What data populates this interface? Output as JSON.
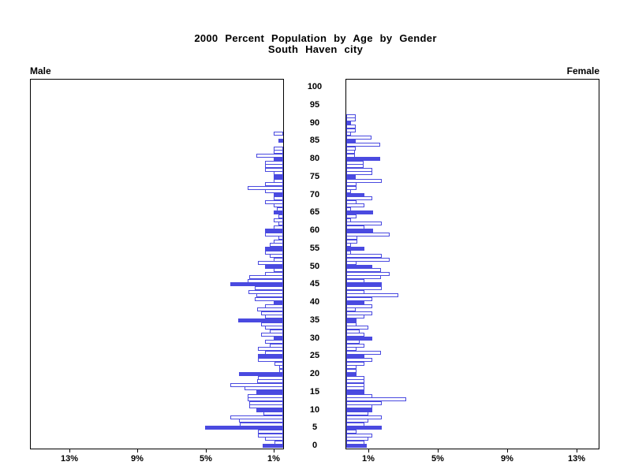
{
  "title": {
    "line1": "2000 Percent Population by Age by Gender",
    "line2": "South Haven city"
  },
  "panels": {
    "male_label": "Male",
    "female_label": "Female"
  },
  "axes": {
    "male_pct_ticks": [
      "13%",
      "9%",
      "5%",
      "1%"
    ],
    "female_pct_ticks": [
      "1%",
      "5%",
      "9%",
      "13%"
    ],
    "age_tick_start": 0,
    "age_tick_end": 100,
    "age_tick_step": 5
  },
  "colors": {
    "bar_blue": "#4a4ae0",
    "axis_black": "#000000",
    "background": "#ffffff"
  },
  "chart_data": {
    "type": "bar",
    "subtype": "population-pyramid",
    "title": "2000 Percent Population by Age by Gender",
    "subtitle": "South Haven city",
    "orientation": "horizontal",
    "x_unit": "percent of population",
    "x_ticks_pct": [
      1,
      5,
      9,
      13
    ],
    "x_max_pct": 15,
    "age_min": 0,
    "age_max": 100,
    "bar_fill_rule": "ages divisible by 5 are solid blue; other single-year ages are white with blue outline",
    "series": [
      {
        "name": "Male",
        "side": "left",
        "values_pct_by_age": [
          1.2,
          0.5,
          1.05,
          1.5,
          1.5,
          4.6,
          2.55,
          2.6,
          3.1,
          1.15,
          1.57,
          2.0,
          2.0,
          2.1,
          2.1,
          1.57,
          2.25,
          3.1,
          1.55,
          1.5,
          2.6,
          0.25,
          0.25,
          0.5,
          1.5,
          1.5,
          1.05,
          1.5,
          0.8,
          1.05,
          0.57,
          1.3,
          0.8,
          1.05,
          1.3,
          2.65,
          1.05,
          1.3,
          1.55,
          1.05,
          0.57,
          1.65,
          1.57,
          2.05,
          1.65,
          3.1,
          2.1,
          2.0,
          1.05,
          0.55,
          1.05,
          1.5,
          0.55,
          0.8,
          1.05,
          1.05,
          0.8,
          0.55,
          0.3,
          1.05,
          1.05,
          0.55,
          0.3,
          0.55,
          0.3,
          0.57,
          0.35,
          0.55,
          1.05,
          0.55,
          0.57,
          1.05,
          2.08,
          1.05,
          0.55,
          0.55,
          0.55,
          1.05,
          1.05,
          1.05,
          0.57,
          1.57,
          0.55,
          0.55,
          0,
          0.3,
          0,
          0.55,
          0,
          0,
          0,
          0,
          0,
          0,
          0,
          0,
          0,
          0,
          0,
          0,
          0
        ]
      },
      {
        "name": "Female",
        "side": "right",
        "values_pct_by_age": [
          1.2,
          1.05,
          1.3,
          1.52,
          0.6,
          2.07,
          1.05,
          1.3,
          2.07,
          1.3,
          1.52,
          1.52,
          2.07,
          3.5,
          1.52,
          1.05,
          1.05,
          1.05,
          1.05,
          1.05,
          0.6,
          0.6,
          0.6,
          1.05,
          1.52,
          1.05,
          2.06,
          0.6,
          1.05,
          0.8,
          1.52,
          1.05,
          0.8,
          1.3,
          0.6,
          0.6,
          1.05,
          1.52,
          0.55,
          1.52,
          1.06,
          1.52,
          3.05,
          1.06,
          2.07,
          2.07,
          1.06,
          2.02,
          2.56,
          2.02,
          1.52,
          0.6,
          2.56,
          2.07,
          0.3,
          1.05,
          0.3,
          0.65,
          0.65,
          2.56,
          1.57,
          1.05,
          2.07,
          0.3,
          0.6,
          1.57,
          0.3,
          1.06,
          0.6,
          1.52,
          1.06,
          0.3,
          0.6,
          0.6,
          2.07,
          0.55,
          1.52,
          1.55,
          1.0,
          1.0,
          2.0,
          0.5,
          0.5,
          0.55,
          2.0,
          0.55,
          1.5,
          0.3,
          0.55,
          0.55,
          0.3,
          0.55,
          0.55,
          0,
          0,
          0,
          0,
          0,
          0,
          0,
          0
        ]
      }
    ]
  }
}
